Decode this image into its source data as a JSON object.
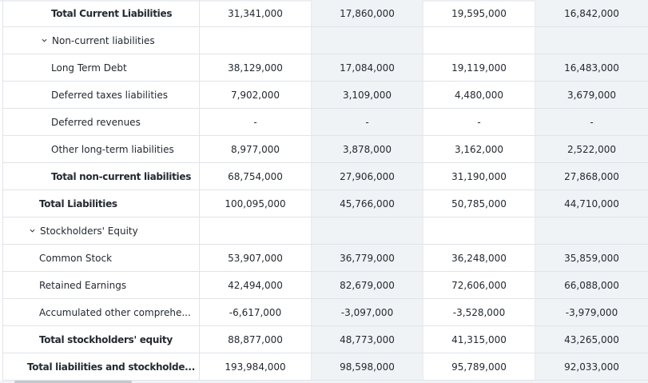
{
  "rows": [
    {
      "label": "Total Current Liabilities",
      "type": "total",
      "level": 2,
      "values": [
        "31,341,000",
        "17,860,000",
        "19,595,000",
        "16,842,000"
      ]
    },
    {
      "label": "Non-current liabilities",
      "type": "group",
      "level": 2,
      "values": [
        "",
        "",
        "",
        ""
      ]
    },
    {
      "label": "Long Term Debt",
      "type": "item",
      "level": 2,
      "values": [
        "38,129,000",
        "17,084,000",
        "19,119,000",
        "16,483,000"
      ]
    },
    {
      "label": "Deferred taxes liabilities",
      "type": "item",
      "level": 2,
      "values": [
        "7,902,000",
        "3,109,000",
        "4,480,000",
        "3,679,000"
      ]
    },
    {
      "label": "Deferred revenues",
      "type": "item",
      "level": 2,
      "values": [
        "-",
        "-",
        "-",
        "-"
      ]
    },
    {
      "label": "Other long-term liabilities",
      "type": "item",
      "level": 2,
      "values": [
        "8,977,000",
        "3,878,000",
        "3,162,000",
        "2,522,000"
      ]
    },
    {
      "label": "Total non-current liabilities",
      "type": "total",
      "level": 2,
      "values": [
        "68,754,000",
        "27,906,000",
        "31,190,000",
        "27,868,000"
      ]
    },
    {
      "label": "Total Liabilities",
      "type": "total",
      "level": 1,
      "values": [
        "100,095,000",
        "45,766,000",
        "50,785,000",
        "44,710,000"
      ]
    },
    {
      "label": "Stockholders' Equity",
      "type": "group",
      "level": 1,
      "values": [
        "",
        "",
        "",
        ""
      ]
    },
    {
      "label": "Common Stock",
      "type": "item",
      "level": 1,
      "values": [
        "53,907,000",
        "36,779,000",
        "36,248,000",
        "35,859,000"
      ]
    },
    {
      "label": "Retained Earnings",
      "type": "item",
      "level": 1,
      "values": [
        "42,494,000",
        "82,679,000",
        "72,606,000",
        "66,088,000"
      ]
    },
    {
      "label": "Accumulated other comprehe...",
      "type": "item",
      "level": 1,
      "values": [
        "-6,617,000",
        "-3,097,000",
        "-3,528,000",
        "-3,979,000"
      ]
    },
    {
      "label": "Total stockholders' equity",
      "type": "total",
      "level": 1,
      "values": [
        "88,877,000",
        "48,773,000",
        "41,315,000",
        "43,265,000"
      ]
    },
    {
      "label": "Total liabilities and stockholde...",
      "type": "total",
      "level": 0,
      "values": [
        "193,984,000",
        "98,598,000",
        "95,789,000",
        "92,033,000"
      ]
    }
  ],
  "colors": {
    "shaded_column": "#f0f3f5",
    "border": "#e0e4e9",
    "text": "#232a31"
  },
  "icons": {
    "group_toggle": "chevron-down-icon"
  }
}
